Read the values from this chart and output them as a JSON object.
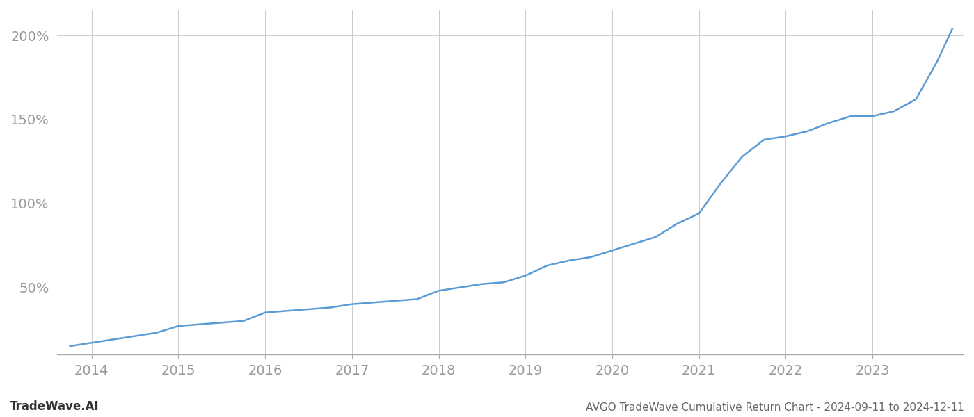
{
  "title": "AVGO TradeWave Cumulative Return Chart - 2024-09-11 to 2024-12-11",
  "watermark": "TradeWave.AI",
  "line_color": "#5b9bd5",
  "background_color": "#ffffff",
  "grid_color": "#cccccc",
  "x_years": [
    2014,
    2015,
    2016,
    2017,
    2018,
    2019,
    2020,
    2021,
    2022,
    2023
  ],
  "x_values": [
    2013.75,
    2014.0,
    2014.25,
    2014.5,
    2014.75,
    2015.0,
    2015.25,
    2015.5,
    2015.75,
    2016.0,
    2016.25,
    2016.5,
    2016.75,
    2017.0,
    2017.25,
    2017.5,
    2017.75,
    2018.0,
    2018.25,
    2018.5,
    2018.75,
    2019.0,
    2019.25,
    2019.5,
    2019.75,
    2020.0,
    2020.25,
    2020.5,
    2020.75,
    2021.0,
    2021.25,
    2021.5,
    2021.75,
    2022.0,
    2022.25,
    2022.5,
    2022.75,
    2023.0,
    2023.25,
    2023.5,
    2023.75,
    2023.92
  ],
  "y_values": [
    15,
    17,
    19,
    21,
    23,
    27,
    28,
    29,
    30,
    35,
    36,
    37,
    38,
    40,
    41,
    42,
    43,
    48,
    50,
    52,
    53,
    57,
    63,
    66,
    68,
    72,
    76,
    80,
    88,
    94,
    112,
    128,
    138,
    140,
    143,
    148,
    152,
    152,
    155,
    162,
    185,
    204
  ],
  "ylim": [
    10,
    215
  ],
  "xlim": [
    2013.6,
    2024.05
  ],
  "yticks": [
    50,
    100,
    150,
    200
  ],
  "ytick_labels": [
    "50%",
    "100%",
    "150%",
    "200%"
  ],
  "tick_color": "#999999",
  "title_color": "#666666",
  "watermark_color": "#333333",
  "line_width": 1.8,
  "title_fontsize": 11,
  "watermark_fontsize": 12,
  "tick_fontsize": 14
}
